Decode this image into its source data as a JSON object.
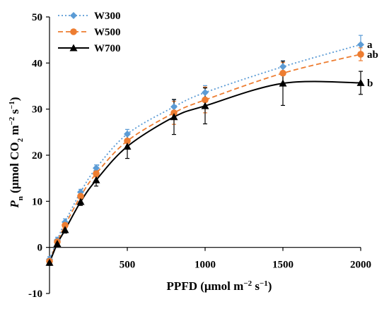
{
  "chart_data": {
    "type": "line",
    "title": "",
    "xlabel_html": "PPFD (μmol m<tspan baseline-shift='super' font-size='11'>−2</tspan> s<tspan baseline-shift='super' font-size='11'>−1</tspan>)",
    "ylabel_html": "<tspan font-style='italic'>P</tspan><tspan baseline-shift='sub' font-size='11'>n</tspan> (μmol CO<tspan baseline-shift='sub' font-size='11'>2</tspan> m<tspan baseline-shift='super' font-size='11'>−2</tspan> s<tspan baseline-shift='super' font-size='11'>−1</tspan>)",
    "xlim": [
      0,
      2000
    ],
    "ylim": [
      -10,
      50
    ],
    "xticks": [
      500,
      1000,
      1500,
      2000
    ],
    "yticks": [
      -10,
      0,
      10,
      20,
      30,
      40,
      50
    ],
    "xtick_labels": [
      "500",
      "1000",
      "1500",
      "2000"
    ],
    "ytick_labels": [
      "-10",
      "0",
      "10",
      "20",
      "30",
      "40",
      "50"
    ],
    "x": [
      0,
      50,
      100,
      200,
      300,
      500,
      800,
      1000,
      1500,
      2000
    ],
    "legend_position": "top-left",
    "series": [
      {
        "name": "W300",
        "color": "#5b9bd5",
        "marker": "diamond",
        "dash": "dotted",
        "values": [
          -2.6,
          1.6,
          5.5,
          12.0,
          17.2,
          24.6,
          30.5,
          33.6,
          39.2,
          44.0
        ],
        "errors": [
          0.6,
          0.6,
          0.7,
          0.6,
          0.7,
          1.0,
          1.5,
          1.5,
          1.3,
          2.0
        ]
      },
      {
        "name": "W500",
        "color": "#ed7d31",
        "marker": "circle",
        "dash": "dashed",
        "values": [
          -3.0,
          1.2,
          4.8,
          11.1,
          16.0,
          23.1,
          29.2,
          32.0,
          37.8,
          41.9
        ],
        "errors": [
          0.5,
          0.5,
          0.6,
          0.6,
          0.7,
          1.2,
          2.5,
          2.8,
          2.3,
          1.4
        ]
      },
      {
        "name": "W700",
        "color": "#000000",
        "marker": "triangle",
        "dash": "solid",
        "values": [
          -3.3,
          0.8,
          3.8,
          9.9,
          14.6,
          21.9,
          28.3,
          30.7,
          35.6,
          35.7
        ],
        "errors": [
          0.6,
          0.6,
          0.7,
          0.8,
          1.3,
          2.6,
          3.8,
          3.9,
          4.8,
          2.5
        ]
      }
    ],
    "significance_labels": [
      "a",
      "ab",
      "b"
    ]
  }
}
